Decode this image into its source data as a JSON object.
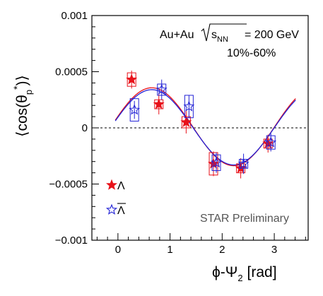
{
  "chart_data": {
    "type": "scatter",
    "title": "",
    "xlabel": {
      "main": "ϕ-Ψ",
      "sub": "2",
      "unit": "[rad]"
    },
    "ylabel": {
      "pre": "⟨cos(θ",
      "sub": "p",
      "sup": "*",
      "post": ")⟩"
    },
    "xlim": [
      -0.5,
      3.65
    ],
    "ylim": [
      -0.001,
      0.001
    ],
    "x_ticks": [
      0,
      1,
      2,
      3
    ],
    "x_tick_labels": [
      "0",
      "1",
      "2",
      "3"
    ],
    "y_ticks": [
      -0.001,
      -0.0005,
      0,
      0.0005,
      0.001
    ],
    "y_tick_labels": [
      "−0.001",
      "−0.0005",
      "0",
      "0.0005",
      "0.001"
    ],
    "grid": false,
    "zero_line": "dashed",
    "annotations": {
      "collision": "Au+Au",
      "sqrt_label": "s",
      "sqrt_sub": "NN",
      "energy": " = 200 GeV",
      "centrality": "10%-60%",
      "preliminary": "STAR Preliminary"
    },
    "series": [
      {
        "name": "Λ",
        "color": "#e8121a",
        "marker": "filled-star",
        "x": [
          0.262,
          0.785,
          1.309,
          1.833,
          2.356,
          2.88
        ],
        "y": [
          0.00043,
          0.00021,
          5e-05,
          -0.00032,
          -0.00036,
          -0.00014
        ],
        "stat_err": [
          8e-05,
          9e-05,
          0.0001,
          0.00011,
          9e-05,
          8e-05
        ],
        "sys_err": [
          6e-05,
          4e-05,
          5e-05,
          0.0001,
          4e-05,
          4e-05
        ]
      },
      {
        "name": "Λ",
        "bar": true,
        "color": "#2323d6",
        "marker": "open-star",
        "x": [
          0.262,
          0.785,
          1.309,
          1.833,
          2.356,
          2.88
        ],
        "y": [
          0.00016,
          0.00034,
          0.00019,
          -0.00031,
          -0.00032,
          -0.00013
        ],
        "stat_err": [
          8e-05,
          9e-05,
          0.0001,
          9e-05,
          9e-05,
          8e-05
        ],
        "sys_err": [
          0.0001,
          5e-05,
          0.0001,
          7e-05,
          4e-05,
          6e-05
        ]
      }
    ],
    "fits": [
      {
        "color": "#e8121a",
        "amplitude": 0.000347,
        "offset": 1e-05,
        "phase": 0.65,
        "x_range": [
          -0.05,
          3.41
        ]
      },
      {
        "color": "#2323d6",
        "amplitude": 0.000335,
        "offset": 5e-06,
        "phase": 0.65,
        "x_range": [
          -0.05,
          3.41
        ]
      }
    ]
  }
}
